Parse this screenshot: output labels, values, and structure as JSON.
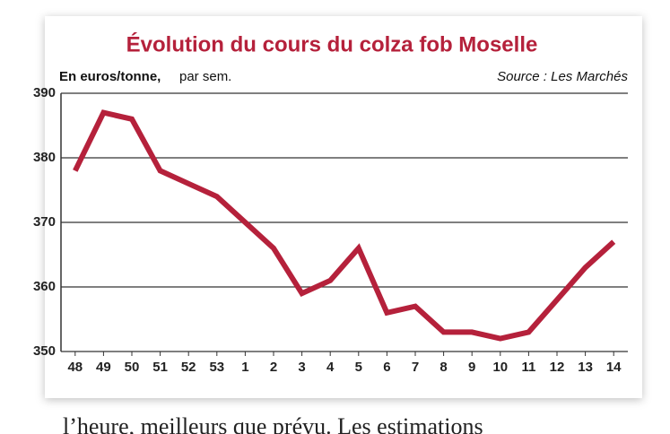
{
  "chart_data": {
    "type": "line",
    "title": "Évolution du cours du colza fob Moselle",
    "unit_label": "En euros/tonne,",
    "unit_suffix": "par sem.",
    "source": "Source : Les Marchés",
    "categories": [
      "48",
      "49",
      "50",
      "51",
      "52",
      "53",
      "1",
      "2",
      "3",
      "4",
      "5",
      "6",
      "7",
      "8",
      "9",
      "10",
      "11",
      "12",
      "13",
      "14"
    ],
    "values": [
      378,
      387,
      386,
      378,
      376,
      374,
      370,
      366,
      359,
      361,
      366,
      356,
      357,
      353,
      353,
      352,
      353,
      358,
      363,
      367
    ],
    "color": "#b5213b",
    "ylim": [
      350,
      390
    ],
    "yticks": [
      350,
      360,
      370,
      380,
      390
    ],
    "grid": true
  },
  "article_text": "l’heure, meilleurs que prévu. Les estimations"
}
